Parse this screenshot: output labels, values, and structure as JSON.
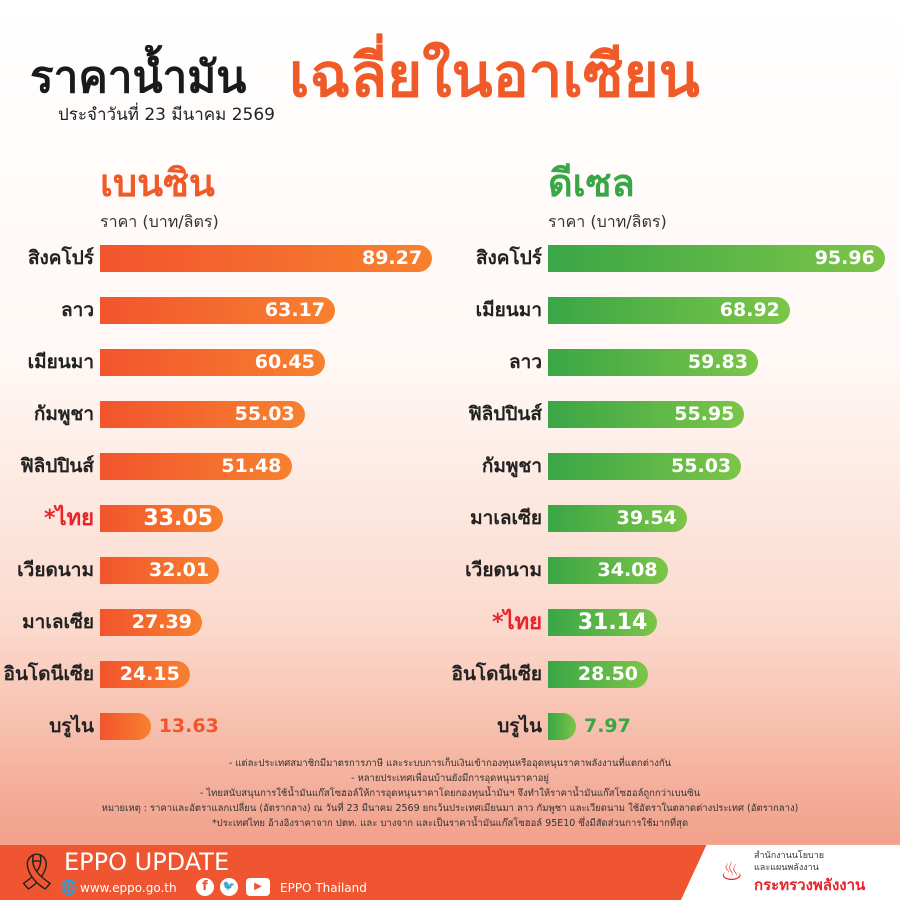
{
  "header": {
    "title_part1": "ราคาน้ำมัน",
    "title_part2": "เฉลี่ยในอาเซียน",
    "date": "ประจำวันที่  23 มีนาคม 2569"
  },
  "colors": {
    "gasoline": "#f2542d",
    "diesel": "#3aa646",
    "thai_highlight": "#e8242b",
    "footer": "#ee5530"
  },
  "chart_data": [
    {
      "type": "bar",
      "orientation": "horizontal",
      "title": "เบนซิน",
      "ylabel": "ราคา (บาท/ลิตร)",
      "categories": [
        "สิงคโปร์",
        "ลาว",
        "เมียนมา",
        "กัมพูชา",
        "ฟิลิปปินส์",
        "*ไทย",
        "เวียดนาม",
        "มาเลเซีย",
        "อินโดนีเซีย",
        "บรูไน"
      ],
      "values": [
        89.27,
        63.17,
        60.45,
        55.03,
        51.48,
        33.05,
        32.01,
        27.39,
        24.15,
        13.63
      ],
      "value_labels": [
        "89.27",
        "63.17",
        "60.45",
        "55.03",
        "51.48",
        "33.05",
        "32.01",
        "27.39",
        "24.15",
        "13.63"
      ],
      "highlight": "*ไทย"
    },
    {
      "type": "bar",
      "orientation": "horizontal",
      "title": "ดีเซล",
      "ylabel": "ราคา (บาท/ลิตร)",
      "categories": [
        "สิงคโปร์",
        "เมียนมา",
        "ลาว",
        "ฟิลิปปินส์",
        "กัมพูชา",
        "มาเลเซีย",
        "เวียดนาม",
        "*ไทย",
        "อินโดนีเซีย",
        "บรูไน"
      ],
      "values": [
        95.96,
        68.92,
        59.83,
        55.95,
        55.03,
        39.54,
        34.08,
        31.14,
        28.5,
        7.97
      ],
      "value_labels": [
        "95.96",
        "68.92",
        "59.83",
        "55.95",
        "55.03",
        "39.54",
        "34.08",
        "31.14",
        "28.50",
        "7.97"
      ],
      "highlight": "*ไทย"
    }
  ],
  "notes": [
    "- แต่ละประเทศสมาชิกมีมาตรการภาษี และระบบการเก็บเงินเข้ากองทุนหรืออุดหนุนราคาพลังงานที่แตกต่างกัน",
    "- หลายประเทศเพื่อนบ้านยังมีการอุดหนุนราคาอยู่",
    "- ไทยสนับสนุนการใช้น้ำมันแก๊สโซฮอล์ให้การอุดหนุนราคาโดยกองทุนน้ำมันฯ จึงทำให้ราคาน้ำมันแก๊สโซฮอล์ถูกกว่าเบนซิน",
    "หมายเหตุ : ราคาและอัตราแลกเปลี่ยน (อัตรากลาง) ณ วันที่ 23 มีนาคม 2569 ยกเว้นประเทศเมียนมา ลาว กัมพูชา และเวียดนาม ใช้อัตราในตลาดต่างประเทศ (อัตรากลาง)",
    "*ประเทศไทย อ้างอิงราคาจาก ปตท. และ บางจาก และเป็นราคาน้ำมันแก๊สโซฮอล์ 95E10 ซึ่งมีสัดส่วนการใช้มากที่สุด"
  ],
  "footer": {
    "brand": "EPPO UPDATE",
    "website": "www.eppo.go.th",
    "social": "EPPO Thailand",
    "org_line1": "สำนักงานนโยบาย",
    "org_line2": "และแผนพลังงาน",
    "ministry": "กระทรวงพลังงาน"
  }
}
